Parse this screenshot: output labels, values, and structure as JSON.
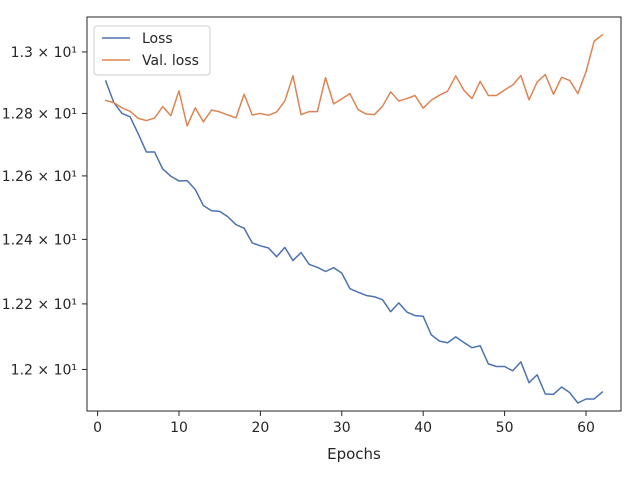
{
  "chart_data": {
    "type": "line",
    "title": "",
    "xlabel": "Epochs",
    "ylabel": "",
    "y_scale": "log",
    "xlim": [
      -1.3,
      64.3
    ],
    "ylim": [
      11.875,
      13.115
    ],
    "x_ticks": [
      0,
      10,
      20,
      30,
      40,
      50,
      60
    ],
    "x_tick_labels": [
      "0",
      "10",
      "20",
      "30",
      "40",
      "50",
      "60"
    ],
    "y_ticks": [
      12.0,
      12.2,
      12.4,
      12.6,
      12.8,
      13.0
    ],
    "y_tick_labels": [
      "1.2 × 10¹",
      "1.22 × 10¹",
      "1.24 × 10¹",
      "1.26 × 10¹",
      "1.28 × 10¹",
      "1.3 × 10¹"
    ],
    "grid": false,
    "legend_position": "top-left",
    "x": [
      1,
      2,
      3,
      4,
      5,
      6,
      7,
      8,
      9,
      10,
      11,
      12,
      13,
      14,
      15,
      16,
      17,
      18,
      19,
      20,
      21,
      22,
      23,
      24,
      25,
      26,
      27,
      28,
      29,
      30,
      31,
      32,
      33,
      34,
      35,
      36,
      37,
      38,
      39,
      40,
      41,
      42,
      43,
      44,
      45,
      46,
      47,
      48,
      49,
      50,
      51,
      52,
      53,
      54,
      55,
      56,
      57,
      58,
      59,
      60,
      61,
      62
    ],
    "series": [
      {
        "name": "Loss",
        "color": "#4c72b0",
        "values": [
          12.905,
          12.835,
          12.8,
          12.789,
          12.734,
          12.676,
          12.676,
          12.622,
          12.599,
          12.584,
          12.585,
          12.557,
          12.506,
          12.49,
          12.488,
          12.471,
          12.446,
          12.435,
          12.389,
          12.38,
          12.373,
          12.346,
          12.375,
          12.334,
          12.359,
          12.322,
          12.313,
          12.3,
          12.312,
          12.295,
          12.247,
          12.236,
          12.226,
          12.222,
          12.213,
          12.176,
          12.203,
          12.175,
          12.164,
          12.162,
          12.105,
          12.086,
          12.081,
          12.099,
          12.082,
          12.066,
          12.072,
          12.017,
          12.009,
          12.009,
          11.996,
          12.023,
          11.96,
          11.984,
          11.926,
          11.925,
          11.947,
          11.93,
          11.899,
          11.911,
          11.911,
          11.932
        ]
      },
      {
        "name": "Val. loss",
        "color": "#dd8452",
        "values": [
          12.842,
          12.835,
          12.818,
          12.807,
          12.784,
          12.777,
          12.785,
          12.822,
          12.793,
          12.873,
          12.76,
          12.818,
          12.773,
          12.811,
          12.805,
          12.795,
          12.786,
          12.862,
          12.795,
          12.8,
          12.794,
          12.805,
          12.84,
          12.922,
          12.796,
          12.806,
          12.806,
          12.916,
          12.831,
          12.847,
          12.864,
          12.812,
          12.798,
          12.796,
          12.823,
          12.87,
          12.84,
          12.848,
          12.858,
          12.817,
          12.843,
          12.859,
          12.872,
          12.922,
          12.875,
          12.848,
          12.904,
          12.858,
          12.858,
          12.876,
          12.892,
          12.923,
          12.844,
          12.902,
          12.926,
          12.862,
          12.917,
          12.907,
          12.864,
          12.935,
          13.035,
          13.056
        ]
      }
    ]
  }
}
